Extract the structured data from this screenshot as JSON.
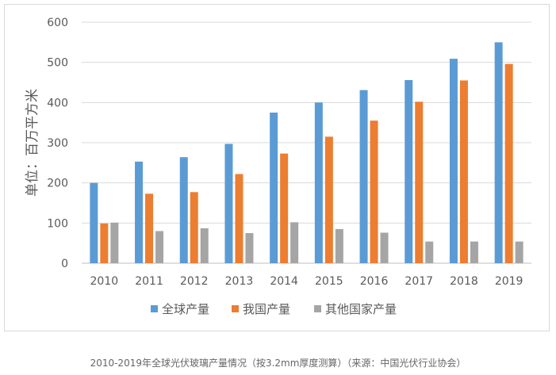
{
  "chart_data": {
    "type": "bar",
    "ylabel": "单位：百万平方米",
    "ylim": [
      0,
      600
    ],
    "yticks": [
      0,
      100,
      200,
      300,
      400,
      500,
      600
    ],
    "grid": true,
    "legend_position": "bottom",
    "categories": [
      "2010",
      "2011",
      "2012",
      "2013",
      "2014",
      "2015",
      "2016",
      "2017",
      "2018",
      "2019"
    ],
    "series": [
      {
        "name": "全球产量",
        "color": "#5b9bd5",
        "values": [
          200,
          253,
          264,
          297,
          375,
          400,
          431,
          456,
          509,
          550
        ]
      },
      {
        "name": "我国产量",
        "color": "#ed7d31",
        "values": [
          99,
          173,
          177,
          222,
          273,
          315,
          355,
          402,
          455,
          496
        ]
      },
      {
        "name": "其他国家产量",
        "color": "#a5a5a5",
        "values": [
          101,
          80,
          87,
          75,
          102,
          85,
          76,
          54,
          54,
          54
        ]
      }
    ]
  },
  "caption": "2010-2019年全球光伏玻璃产量情况（按3.2mm厚度测算）（来源：中国光伏行业协会）"
}
